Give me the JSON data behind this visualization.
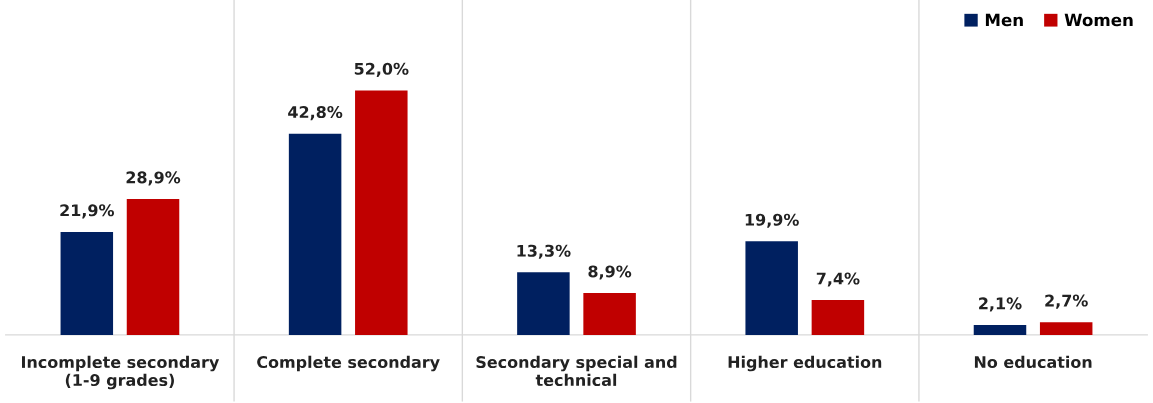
{
  "chart_data": {
    "type": "bar",
    "categories": [
      "Incomplete secondary\n(1-9 grades)",
      "Complete secondary",
      "Secondary special and\ntechnical",
      "Higher education",
      "No education"
    ],
    "series": [
      {
        "name": "Men",
        "color": "#002060",
        "values": [
          21.9,
          42.8,
          13.3,
          19.9,
          2.1
        ],
        "value_labels": [
          "21,9%",
          "42,8%",
          "13,3%",
          "19,9%",
          "2,1%"
        ]
      },
      {
        "name": "Women",
        "color": "#c00000",
        "values": [
          28.9,
          52.0,
          8.9,
          7.4,
          2.7
        ],
        "value_labels": [
          "28,9%",
          "52,0%",
          "8,9%",
          "7,4%",
          "2,7%"
        ]
      }
    ],
    "grid": "x",
    "legend": "top right",
    "tick_labels": "x"
  }
}
